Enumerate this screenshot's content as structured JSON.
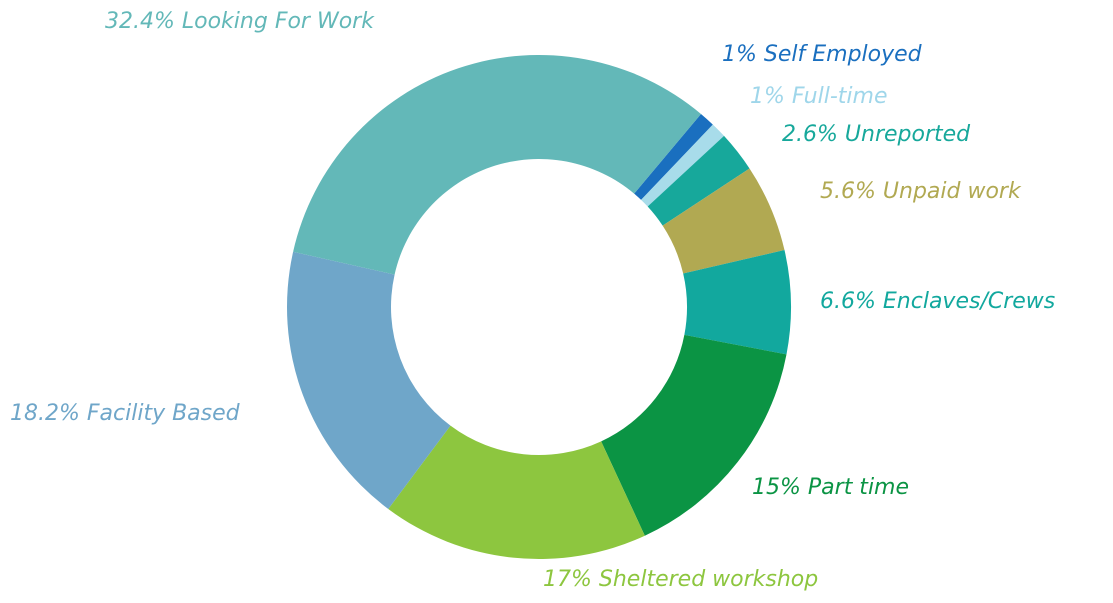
{
  "chart_data": {
    "type": "donut",
    "categories": [
      "Self Employed",
      "Full-time",
      "Unreported",
      "Unpaid work",
      "Enclaves/Crews",
      "Part time",
      "Sheltered workshop",
      "Facility Based",
      "Looking For Work"
    ],
    "values": [
      1,
      1,
      2.6,
      5.6,
      6.6,
      15,
      17,
      18.2,
      32.4
    ],
    "value_labels": [
      "1%",
      "1%",
      "2.6%",
      "5.6%",
      "6.6%",
      "15%",
      "17%",
      "18.2%",
      "32.4%"
    ],
    "colors": [
      "#1a6fbf",
      "#a8dcea",
      "#17a89b",
      "#b1a952",
      "#12a89e",
      "#0b9444",
      "#8dc63f",
      "#6fa6c9",
      "#63b8b8"
    ]
  }
}
